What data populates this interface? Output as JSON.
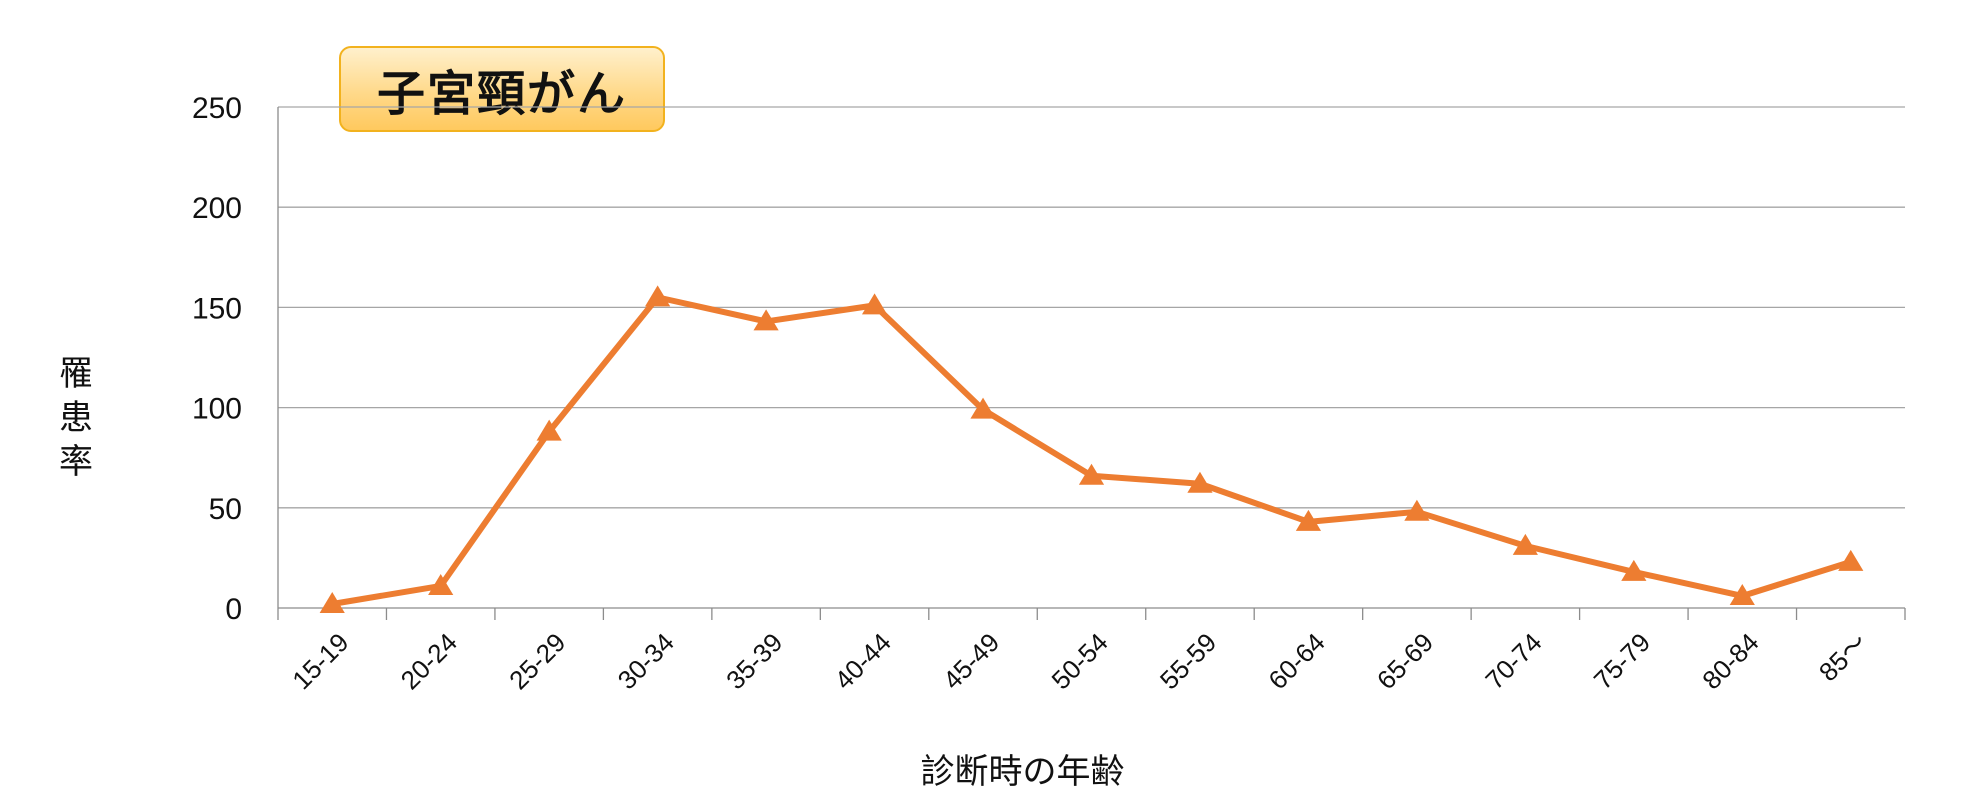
{
  "chart_data": {
    "type": "line",
    "title": "子宮頸がん",
    "xlabel": "診断時の年齢",
    "ylabel": "罹患率",
    "categories": [
      "15-19",
      "20-24",
      "25-29",
      "30-34",
      "35-39",
      "40-44",
      "45-49",
      "50-54",
      "55-59",
      "60-64",
      "65-69",
      "70-74",
      "75-79",
      "80-84",
      "85～"
    ],
    "series": [
      {
        "values": [
          2,
          11,
          88,
          155,
          143,
          151,
          99,
          66,
          62,
          43,
          48,
          31,
          18,
          6,
          23
        ]
      }
    ],
    "yticks": [
      "0",
      "50",
      "100",
      "150",
      "200",
      "250"
    ],
    "ylim": [
      0,
      250
    ],
    "grid": true,
    "legend": "none",
    "colors": {
      "line": "#ed7d31",
      "grid": "#a6a6a6",
      "axis": "#8c8c8c"
    },
    "marker": "triangle"
  }
}
